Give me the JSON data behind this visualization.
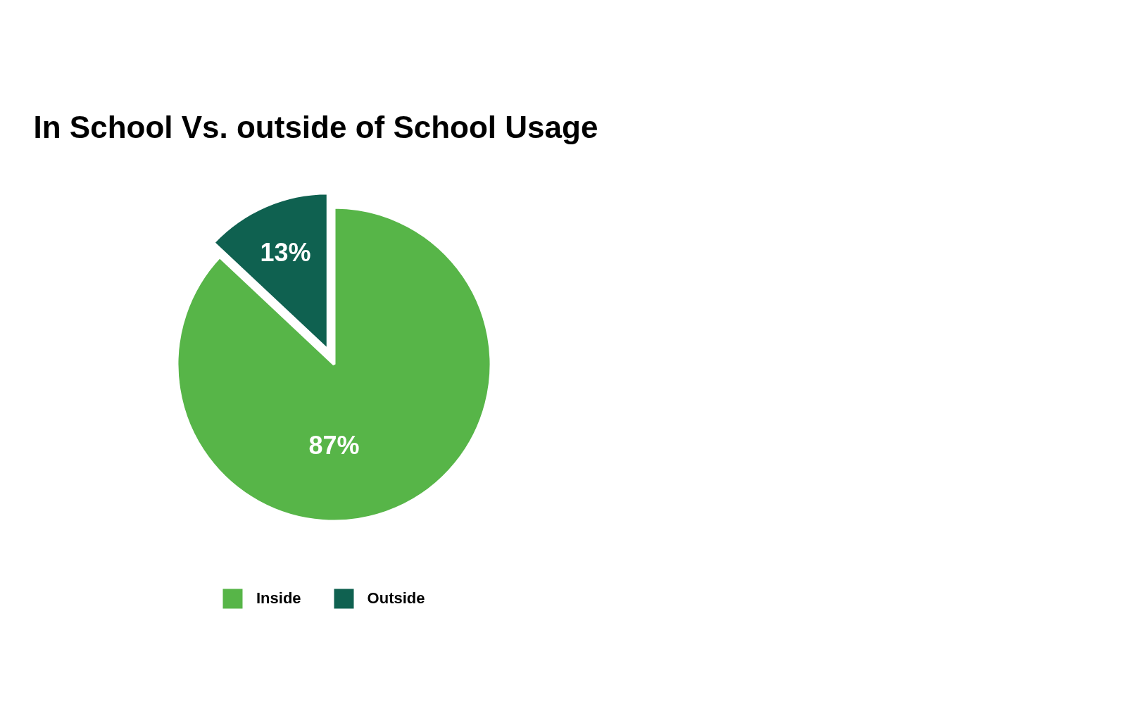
{
  "chart_data": {
    "type": "pie",
    "title": "In School Vs. outside of School Usage",
    "categories": [
      "Inside",
      "Outside"
    ],
    "values": [
      87,
      13
    ],
    "colors": [
      "#57b548",
      "#0f6150"
    ],
    "value_labels": [
      "87%",
      "13%"
    ],
    "legend": "bottom"
  }
}
